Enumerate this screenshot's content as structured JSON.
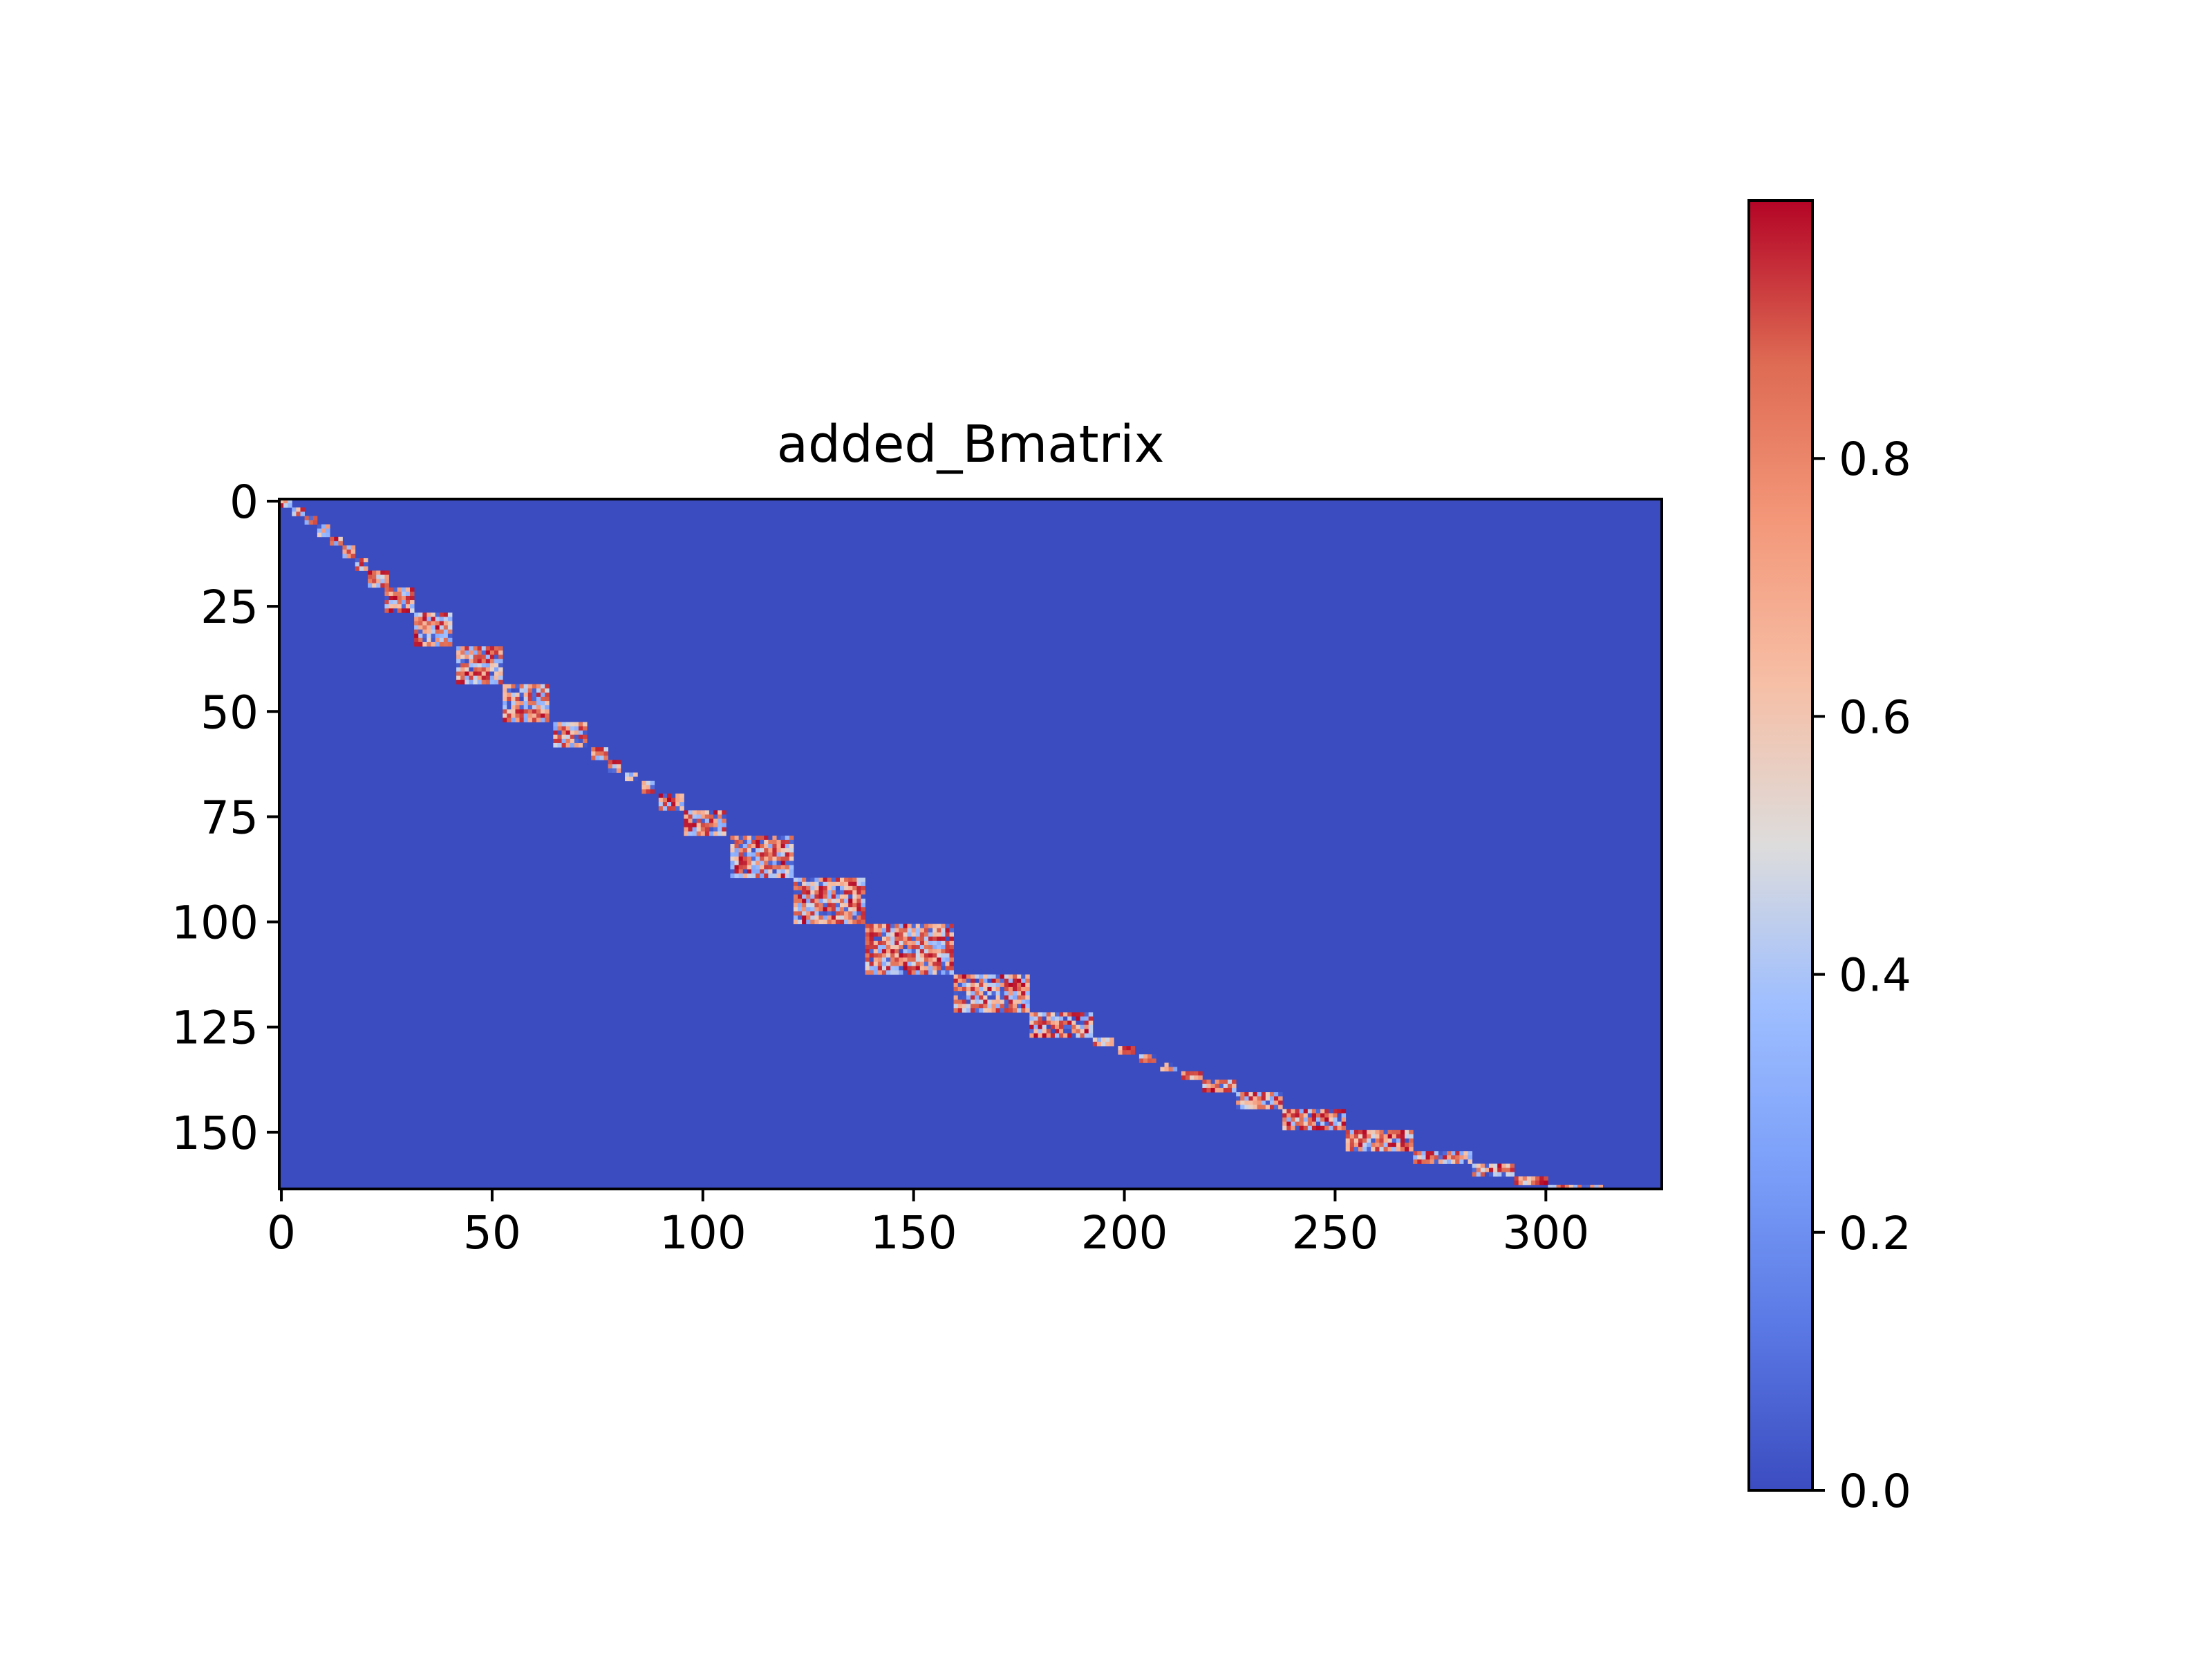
{
  "chart_data": {
    "type": "heatmap",
    "title": "added_Bmatrix",
    "xlabel": "",
    "ylabel": "",
    "x_range": [
      0,
      328
    ],
    "y_range": [
      0,
      164
    ],
    "y_axis_inverted": true,
    "x_ticks": [
      0,
      50,
      100,
      150,
      200,
      250,
      300
    ],
    "y_ticks": [
      0,
      25,
      50,
      75,
      100,
      125,
      150
    ],
    "x_tick_labels": [
      "0",
      "50",
      "100",
      "150",
      "200",
      "250",
      "300"
    ],
    "y_tick_labels": [
      "0",
      "25",
      "50",
      "75",
      "100",
      "125",
      "150"
    ],
    "colormap": "coolwarm",
    "background_value": 0.0,
    "colorbar": {
      "range": [
        0.0,
        1.0
      ],
      "ticks": [
        0.0,
        0.2,
        0.4,
        0.6,
        0.8
      ],
      "tick_labels": [
        "0.0",
        "0.2",
        "0.4",
        "0.6",
        "0.8"
      ],
      "placement": "right"
    },
    "grid": false,
    "legend": "none",
    "blocks": [
      {
        "row": 0,
        "col": 0,
        "rows": 2,
        "cols": 3
      },
      {
        "row": 2,
        "col": 3,
        "rows": 2,
        "cols": 3
      },
      {
        "row": 4,
        "col": 6,
        "rows": 2,
        "cols": 3
      },
      {
        "row": 6,
        "col": 9,
        "rows": 3,
        "cols": 3
      },
      {
        "row": 9,
        "col": 12,
        "rows": 2,
        "cols": 3
      },
      {
        "row": 11,
        "col": 15,
        "rows": 3,
        "cols": 3
      },
      {
        "row": 14,
        "col": 18,
        "rows": 3,
        "cols": 3
      },
      {
        "row": 17,
        "col": 21,
        "rows": 4,
        "cols": 5
      },
      {
        "row": 21,
        "col": 25,
        "rows": 6,
        "cols": 7
      },
      {
        "row": 27,
        "col": 32,
        "rows": 8,
        "cols": 9
      },
      {
        "row": 35,
        "col": 42,
        "rows": 9,
        "cols": 11
      },
      {
        "row": 44,
        "col": 53,
        "rows": 9,
        "cols": 11
      },
      {
        "row": 53,
        "col": 65,
        "rows": 6,
        "cols": 8
      },
      {
        "row": 59,
        "col": 74,
        "rows": 3,
        "cols": 4
      },
      {
        "row": 62,
        "col": 78,
        "rows": 3,
        "cols": 3
      },
      {
        "row": 65,
        "col": 82,
        "rows": 2,
        "cols": 3
      },
      {
        "row": 67,
        "col": 86,
        "rows": 3,
        "cols": 3
      },
      {
        "row": 70,
        "col": 90,
        "rows": 4,
        "cols": 6
      },
      {
        "row": 74,
        "col": 96,
        "rows": 6,
        "cols": 10
      },
      {
        "row": 80,
        "col": 107,
        "rows": 10,
        "cols": 15
      },
      {
        "row": 90,
        "col": 122,
        "rows": 11,
        "cols": 17
      },
      {
        "row": 101,
        "col": 139,
        "rows": 12,
        "cols": 21
      },
      {
        "row": 113,
        "col": 160,
        "rows": 9,
        "cols": 18
      },
      {
        "row": 122,
        "col": 178,
        "rows": 6,
        "cols": 15
      },
      {
        "row": 128,
        "col": 193,
        "rows": 2,
        "cols": 5
      },
      {
        "row": 130,
        "col": 199,
        "rows": 2,
        "cols": 4
      },
      {
        "row": 132,
        "col": 204,
        "rows": 2,
        "cols": 4
      },
      {
        "row": 134,
        "col": 209,
        "rows": 2,
        "cols": 4
      },
      {
        "row": 136,
        "col": 214,
        "rows": 2,
        "cols": 5
      },
      {
        "row": 138,
        "col": 219,
        "rows": 3,
        "cols": 8
      },
      {
        "row": 141,
        "col": 227,
        "rows": 4,
        "cols": 11
      },
      {
        "row": 145,
        "col": 238,
        "rows": 5,
        "cols": 15
      },
      {
        "row": 150,
        "col": 253,
        "rows": 5,
        "cols": 16
      },
      {
        "row": 155,
        "col": 269,
        "rows": 3,
        "cols": 14
      },
      {
        "row": 158,
        "col": 283,
        "rows": 3,
        "cols": 10
      },
      {
        "row": 161,
        "col": 293,
        "rows": 2,
        "cols": 8
      },
      {
        "row": 163,
        "col": 301,
        "rows": 1,
        "cols": 6
      },
      {
        "row": 163,
        "col": 307,
        "rows": 1,
        "cols": 7
      }
    ]
  }
}
